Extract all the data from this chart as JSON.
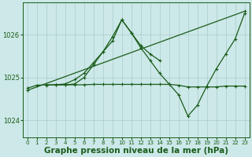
{
  "bg_color": "#cce8e8",
  "grid_color": "#aacccc",
  "line_color": "#1a5c1a",
  "title": "Graphe pression niveau de la mer (hPa)",
  "title_fontsize": 7.5,
  "xlim": [
    -0.5,
    23.5
  ],
  "ylim": [
    1023.6,
    1026.75
  ],
  "yticks": [
    1024,
    1025,
    1026
  ],
  "xticks": [
    0,
    1,
    2,
    3,
    4,
    5,
    6,
    7,
    8,
    9,
    10,
    11,
    12,
    13,
    14,
    15,
    16,
    17,
    18,
    19,
    20,
    21,
    22,
    23
  ],
  "series": [
    {
      "x": [
        0,
        1,
        2,
        3,
        4,
        5,
        6,
        7,
        8,
        9,
        10,
        11,
        12,
        13,
        14,
        15,
        16,
        17,
        18,
        19,
        20,
        21,
        22,
        23
      ],
      "y": [
        1024.75,
        1024.82,
        1024.83,
        1024.83,
        1024.83,
        1024.83,
        1024.83,
        1024.84,
        1024.84,
        1024.84,
        1024.84,
        1024.84,
        1024.84,
        1024.84,
        1024.84,
        1024.84,
        1024.82,
        1024.78,
        1024.78,
        1024.78,
        1024.78,
        1024.8,
        1024.8,
        1024.8
      ],
      "marker": "+",
      "linewidth": 0.9,
      "markersize": 3.5
    },
    {
      "x": [
        0,
        23
      ],
      "y": [
        1024.7,
        1026.55
      ],
      "marker": "+",
      "linewidth": 0.9,
      "markersize": 3.5
    },
    {
      "x": [
        2,
        3,
        4,
        5,
        6,
        7,
        8,
        9,
        10,
        11,
        12,
        13,
        14
      ],
      "y": [
        1024.82,
        1024.83,
        1024.85,
        1024.95,
        1025.1,
        1025.35,
        1025.6,
        1025.85,
        1026.35,
        1026.05,
        1025.75,
        1025.55,
        1025.4
      ],
      "marker": "+",
      "linewidth": 0.9,
      "markersize": 3.5
    },
    {
      "x": [
        3,
        4,
        5,
        6,
        7,
        8,
        9,
        10,
        11,
        12,
        13,
        14,
        15,
        16,
        17,
        18,
        19,
        20,
        21,
        22,
        23
      ],
      "y": [
        1024.83,
        1024.83,
        1024.85,
        1025.0,
        1025.3,
        1025.6,
        1025.95,
        1026.35,
        1026.05,
        1025.7,
        1025.4,
        1025.1,
        1024.85,
        1024.6,
        1024.1,
        1024.35,
        1024.8,
        1025.2,
        1025.55,
        1025.9,
        1026.5
      ],
      "marker": "+",
      "linewidth": 0.9,
      "markersize": 3.5
    }
  ]
}
